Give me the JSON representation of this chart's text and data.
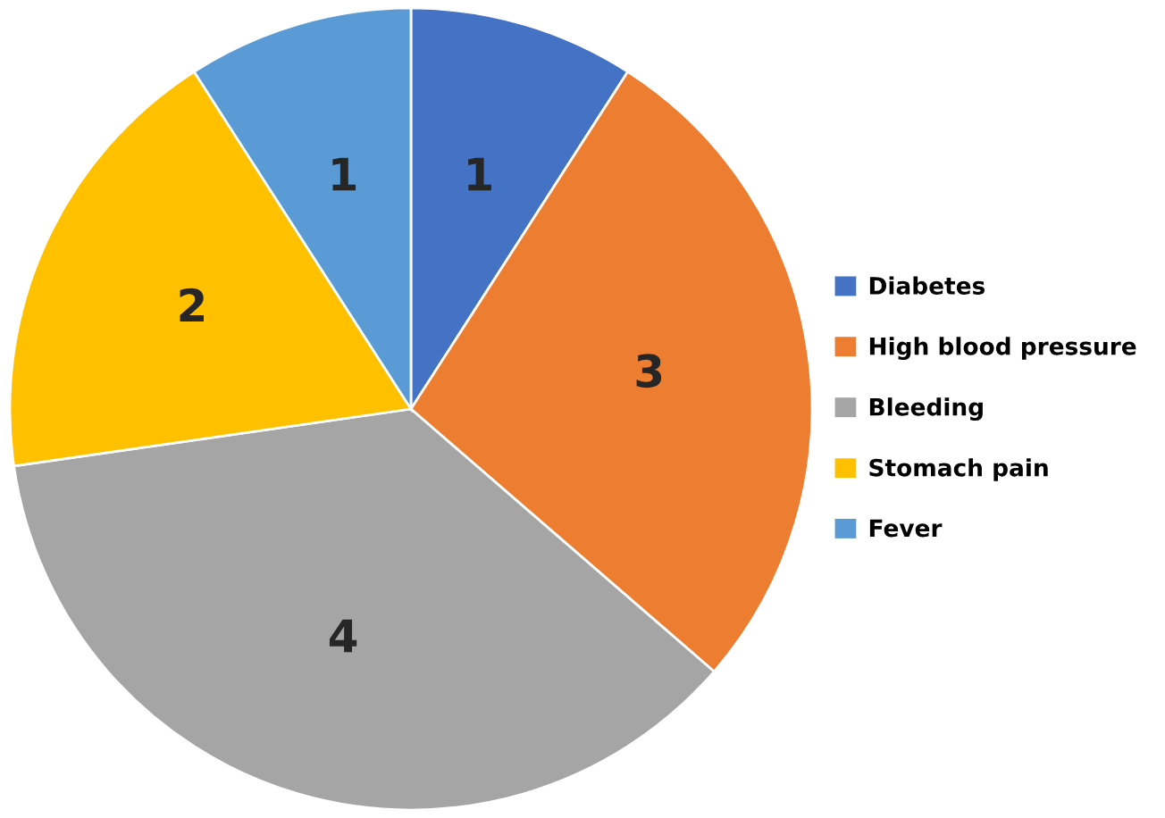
{
  "chart_data": {
    "type": "pie",
    "categories": [
      "Diabetes",
      "High blood pressure",
      "Bleeding",
      "Stomach pain",
      "Fever"
    ],
    "values": [
      1,
      3,
      4,
      2,
      1
    ],
    "colors": [
      "#4472c4",
      "#ed7d31",
      "#a5a5a5",
      "#ffc000",
      "#5b9bd5"
    ],
    "data_labels": true,
    "legend": "right"
  }
}
